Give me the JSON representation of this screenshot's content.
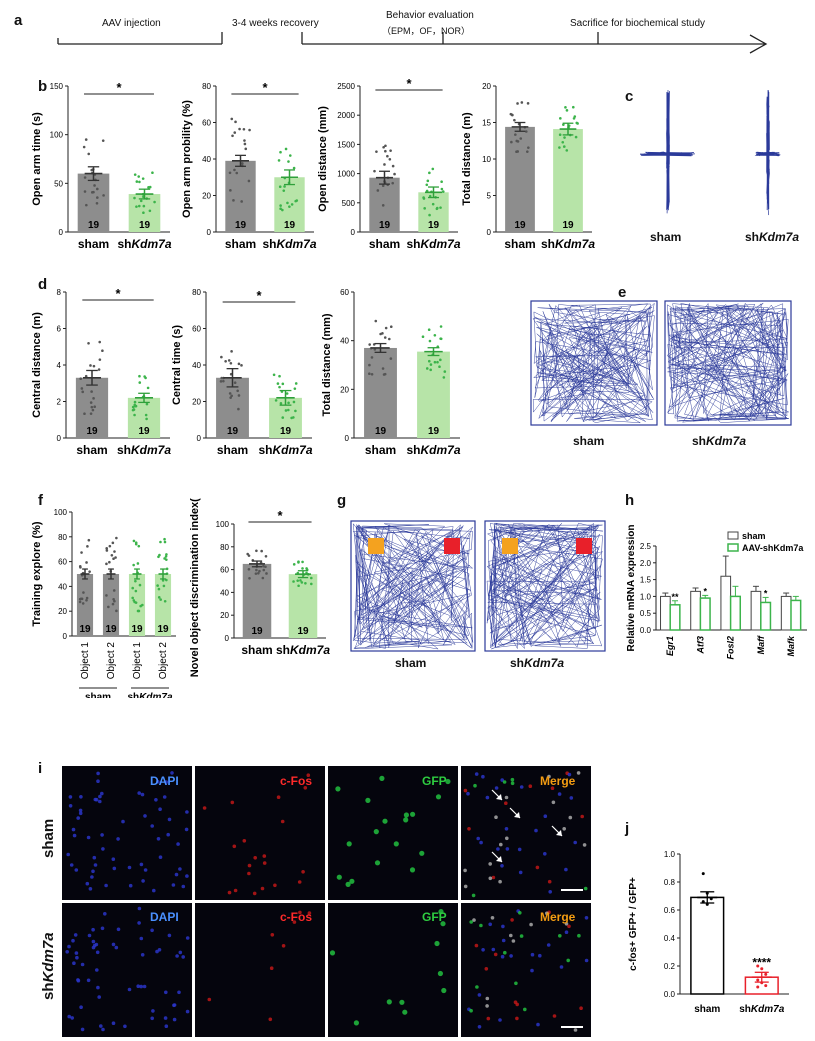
{
  "panels": {
    "a": "a",
    "b": "b",
    "c": "c",
    "d": "d",
    "e": "e",
    "f": "f",
    "g": "g",
    "h": "h",
    "i": "i",
    "j": "j"
  },
  "timeline": {
    "step1": "AAV injection",
    "step2": "3-4 weeks recovery",
    "step3": "Behavior evaluation",
    "step3_sub": "（EPM，OF，NOR）",
    "step4": "Sacrifice for biochemical study"
  },
  "groups": {
    "sham": "sham",
    "kd_prefix": "sh",
    "kd_gene": "Kdm7a",
    "aav_prefix": "AAV-sh"
  },
  "n_label": "19",
  "significance": {
    "one": "*",
    "two": "**",
    "four": "****"
  },
  "colors": {
    "sham_bar": "#8d8d8d",
    "kd_bar": "#b7e4a8",
    "kd_dot": "#3cb44b",
    "kd_err": "#2fa03a",
    "trace": "#2b3a9a",
    "red_obj": "#e8202a",
    "orange_obj": "#f4a21f",
    "dapi": "#4a90ff",
    "cfos": "#ff2a2a",
    "gfp": "#2ecc40",
    "merge": "#f39c12",
    "j_sham": "#000000",
    "j_kd": "#e8202a"
  },
  "charts": {
    "b1": {
      "ylabel": "Open arm time (s)",
      "ticks": [
        0,
        50,
        100,
        150
      ],
      "ylim": [
        0,
        150
      ],
      "values": [
        60,
        39
      ],
      "errors": [
        7,
        5
      ],
      "sig": "*"
    },
    "b2": {
      "ylabel": "Open arm probility (%)",
      "ticks": [
        0,
        20,
        40,
        60,
        80
      ],
      "ylim": [
        0,
        80
      ],
      "values": [
        39,
        30
      ],
      "errors": [
        3,
        4
      ],
      "sig": "*"
    },
    "b3": {
      "ylabel": "Open distance (mm)",
      "ticks": [
        0,
        500,
        1000,
        1500,
        2000,
        2500
      ],
      "ylim": [
        0,
        2500
      ],
      "values": [
        930,
        680
      ],
      "errors": [
        110,
        90
      ],
      "sig": "*"
    },
    "b4": {
      "ylabel": "Total distance (m)",
      "ticks": [
        0,
        5,
        10,
        15,
        20
      ],
      "ylim": [
        0,
        20
      ],
      "values": [
        14.4,
        14.1
      ],
      "errors": [
        0.6,
        0.8
      ],
      "sig": ""
    },
    "d1": {
      "ylabel": "Central distance (m)",
      "ticks": [
        0,
        2,
        4,
        6,
        8
      ],
      "ylim": [
        0,
        8
      ],
      "values": [
        3.3,
        2.2
      ],
      "errors": [
        0.4,
        0.25
      ],
      "sig": "*"
    },
    "d2": {
      "ylabel": "Central time (s)",
      "ticks": [
        0,
        20,
        40,
        60,
        80
      ],
      "ylim": [
        0,
        80
      ],
      "values": [
        33,
        22
      ],
      "errors": [
        5,
        4
      ],
      "sig": "*"
    },
    "d3": {
      "ylabel": "Total distance (mm)",
      "ticks": [
        0,
        20,
        40,
        60
      ],
      "ylim": [
        0,
        60
      ],
      "values": [
        37,
        35.5
      ],
      "errors": [
        1.8,
        1.6
      ],
      "sig": ""
    },
    "f1": {
      "ylabel": "Training explore (%)",
      "ticks": [
        0,
        20,
        40,
        60,
        80,
        100
      ],
      "ylim": [
        0,
        100
      ],
      "values": [
        50,
        50,
        50,
        50
      ],
      "errors": [
        4,
        4,
        4,
        4
      ],
      "categories": [
        "Object 1",
        "Object 2",
        "Object 1",
        "Object 2"
      ]
    },
    "f2": {
      "ylabel": "Novel object discrimination index(%)",
      "ticks": [
        0,
        20,
        40,
        60,
        80,
        100
      ],
      "ylim": [
        0,
        100
      ],
      "values": [
        65,
        56
      ],
      "errors": [
        2.5,
        3
      ],
      "sig": "*"
    },
    "h": {
      "ylabel": "Relative mRNA expression",
      "ticks": [
        0.0,
        0.5,
        1.0,
        1.5,
        2.0,
        2.5
      ],
      "ylim": [
        0,
        2.5
      ],
      "categories": [
        "Egr1",
        "Atf3",
        "Fosl2",
        "Maff",
        "Mafk"
      ],
      "sham": [
        1.0,
        1.15,
        1.6,
        1.15,
        1.0
      ],
      "sham_err": [
        0.1,
        0.1,
        0.6,
        0.15,
        0.1
      ],
      "kd": [
        0.75,
        0.95,
        1.0,
        0.82,
        0.88
      ],
      "kd_err": [
        0.12,
        0.08,
        0.3,
        0.15,
        0.12
      ],
      "sig": [
        "**",
        "*",
        "",
        "*",
        ""
      ],
      "legend": [
        "sham",
        "AAV-shKdm7a"
      ]
    },
    "j": {
      "ylabel": "c-fos+ GFP+ / GFP+",
      "ticks": [
        0.0,
        0.2,
        0.4,
        0.6,
        0.8,
        1.0
      ],
      "ylim": [
        0,
        1.0
      ],
      "values": [
        0.69,
        0.12
      ],
      "errors": [
        0.04,
        0.035
      ],
      "sig": "****"
    }
  },
  "micro": {
    "dapi": "DAPI",
    "cfos": "c-Fos",
    "gfp": "GFP",
    "merge": "Merge"
  }
}
